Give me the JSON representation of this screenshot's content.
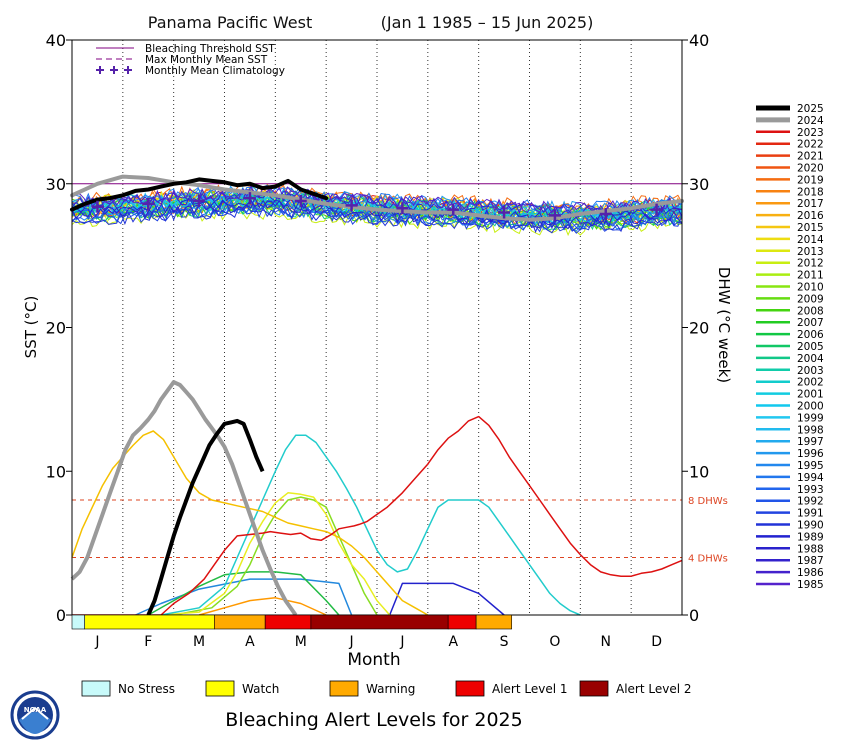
{
  "chart_data": {
    "type": "line",
    "title": "Panama Pacific West",
    "subtitle": "(Jan 1 1985 – 15 Jun 2025)",
    "xlabel": "Month",
    "ylabel_left": "SST (°C)",
    "ylabel_right": "DHW (°C week)",
    "ylim": [
      0,
      40
    ],
    "yticks": [
      0,
      10,
      20,
      30,
      40
    ],
    "months": [
      "J",
      "F",
      "M",
      "A",
      "M",
      "J",
      "J",
      "A",
      "S",
      "O",
      "N",
      "D"
    ],
    "bleaching_threshold_sst": 30.0,
    "reference_lines": [
      {
        "label": "8 DHWs",
        "value": 8,
        "color": "#dd4422"
      },
      {
        "label": "4 DHWs",
        "value": 4,
        "color": "#dd4422"
      }
    ],
    "legend_top": [
      {
        "label": "Bleaching Threshold SST",
        "style": "solid",
        "color": "#800080"
      },
      {
        "label": "Max Monthly Mean SST",
        "style": "dashed",
        "color": "#800080"
      },
      {
        "label": "Monthly Mean Climatology",
        "style": "cross",
        "color": "#5522aa"
      }
    ],
    "climatology": [
      28.4,
      28.6,
      28.8,
      29.0,
      28.8,
      28.5,
      28.3,
      28.2,
      28.0,
      27.8,
      27.9,
      28.2
    ],
    "sst_2025": {
      "x": [
        0.0,
        0.25,
        0.5,
        0.75,
        1.0,
        1.25,
        1.5,
        1.75,
        2.0,
        2.25,
        2.5,
        2.75,
        3.0,
        3.25,
        3.5,
        3.75,
        4.0,
        4.25,
        4.5,
        4.75,
        5.0
      ],
      "y": [
        28.2,
        28.6,
        28.9,
        29.0,
        29.2,
        29.5,
        29.6,
        29.8,
        30.0,
        30.1,
        30.3,
        30.2,
        30.1,
        29.9,
        30.0,
        29.7,
        29.8,
        30.2,
        29.6,
        29.3,
        29.0
      ]
    },
    "sst_2024": {
      "x": [
        0.0,
        0.5,
        1.0,
        1.5,
        2.0,
        2.5,
        3.0,
        3.5,
        4.0,
        4.5,
        5.0,
        5.5,
        6.0,
        6.5,
        7.0,
        7.5,
        8.0,
        8.5,
        9.0,
        9.5,
        10.0,
        10.5,
        11.0,
        11.5,
        12.0
      ],
      "y": [
        29.2,
        30.0,
        30.5,
        30.4,
        30.1,
        29.9,
        29.6,
        29.4,
        29.2,
        28.9,
        28.6,
        28.4,
        28.2,
        28.1,
        28.0,
        28.0,
        27.8,
        27.6,
        27.5,
        27.6,
        27.9,
        28.1,
        28.3,
        28.6,
        28.8
      ]
    },
    "dhw_series": [
      {
        "name": "2025",
        "color": "#000000",
        "width": 4,
        "x": [
          3.0,
          3.25,
          3.5,
          3.75,
          4.0,
          4.25,
          4.5,
          4.75,
          5.0,
          5.2,
          5.4,
          5.7,
          6.0,
          6.25,
          6.5,
          6.75,
          7.0,
          7.25,
          7.5
        ],
        "y": [
          0.0,
          1.0,
          2.5,
          4.0,
          5.5,
          6.8,
          8.0,
          9.2,
          10.2,
          11.0,
          11.8,
          12.6,
          13.3,
          13.4,
          13.5,
          13.3,
          12.2,
          11.0,
          10.0
        ]
      },
      {
        "name": "2024",
        "color": "#9a9a9a",
        "width": 4,
        "x": [
          0.0,
          0.3,
          0.6,
          0.9,
          1.2,
          1.5,
          1.8,
          2.1,
          2.4,
          2.7,
          3.0,
          3.25,
          3.5,
          3.75,
          4.0,
          4.25,
          4.5,
          4.75,
          5.0,
          5.25,
          5.5,
          5.75,
          6.0,
          6.3,
          6.6,
          6.9,
          7.2,
          7.5,
          7.8,
          8.1,
          8.4,
          8.8
        ],
        "y": [
          2.5,
          3.0,
          4.0,
          5.5,
          7.0,
          8.5,
          10.0,
          11.5,
          12.5,
          13.0,
          13.6,
          14.2,
          15.0,
          15.6,
          16.2,
          16.0,
          15.5,
          15.0,
          14.3,
          13.6,
          13.0,
          12.4,
          11.7,
          10.5,
          9.0,
          7.5,
          6.0,
          4.5,
          3.2,
          2.0,
          1.0,
          0.0
        ]
      },
      {
        "name": "2023",
        "color": "#dd1111",
        "width": 1.5,
        "x": [
          0.0,
          3.5,
          4.0,
          4.6,
          5.2,
          5.6,
          6.0,
          6.5,
          7.0,
          7.5,
          7.8,
          8.2,
          8.6,
          9.0,
          9.4,
          9.8,
          10.2,
          10.5,
          10.8,
          11.1,
          11.3,
          11.6,
          12.0,
          12.4,
          13.0,
          13.5,
          14.0,
          14.4,
          14.8,
          15.2,
          15.6,
          16.0,
          16.4,
          16.8,
          17.2,
          17.6,
          18.0,
          18.4,
          18.8,
          19.2,
          19.6,
          20.0,
          20.4,
          20.8,
          21.2,
          21.6,
          22.0,
          22.4,
          22.8,
          23.2,
          23.6,
          24.0
        ],
        "y": [
          0.0,
          0.0,
          0.8,
          1.5,
          2.5,
          3.5,
          4.5,
          5.5,
          5.6,
          5.7,
          5.8,
          5.7,
          5.6,
          5.7,
          5.3,
          5.2,
          5.6,
          6.0,
          6.1,
          6.2,
          6.3,
          6.5,
          7.0,
          7.5,
          8.5,
          9.5,
          10.5,
          11.5,
          12.3,
          12.8,
          13.5,
          13.8,
          13.2,
          12.2,
          11.0,
          10.0,
          9.0,
          8.0,
          7.0,
          6.0,
          5.0,
          4.2,
          3.5,
          3.0,
          2.8,
          2.7,
          2.7,
          2.9,
          3.0,
          3.2,
          3.5,
          3.8
        ]
      },
      {
        "name": "2016",
        "color": "#f5c000",
        "width": 1.5,
        "x": [
          0.0,
          0.4,
          0.8,
          1.2,
          1.6,
          2.0,
          2.4,
          2.8,
          3.2,
          3.6,
          4.0,
          4.5,
          5.0,
          5.5,
          6.0,
          6.5,
          7.0,
          7.5,
          8.0,
          8.5,
          9.0,
          9.5,
          10.0,
          10.5,
          11.0,
          11.5,
          12.0,
          12.5,
          13.0,
          13.5,
          14.0
        ],
        "y": [
          4.0,
          6.0,
          7.5,
          9.0,
          10.2,
          11.0,
          11.8,
          12.5,
          12.8,
          12.2,
          11.0,
          9.5,
          8.5,
          8.0,
          7.8,
          7.6,
          7.4,
          7.2,
          6.8,
          6.4,
          6.2,
          6.0,
          5.8,
          5.4,
          4.8,
          4.0,
          3.0,
          2.0,
          1.0,
          0.5,
          0.0
        ]
      },
      {
        "name": "1997",
        "color": "#22cccc",
        "width": 1.5,
        "x": [
          3.5,
          5.0,
          6.0,
          6.5,
          7.0,
          7.5,
          8.0,
          8.4,
          8.8,
          9.2,
          9.6,
          10.0,
          10.4,
          10.8,
          11.2,
          11.6,
          12.0,
          12.4,
          12.8,
          13.2,
          13.6,
          14.0,
          14.4,
          14.8,
          15.2,
          15.6,
          16.0,
          16.4,
          16.8,
          17.2,
          17.6,
          18.0,
          18.4,
          18.8,
          19.2,
          19.6,
          20.0
        ],
        "y": [
          0.0,
          0.5,
          2.0,
          4.0,
          6.0,
          8.0,
          10.0,
          11.5,
          12.5,
          12.5,
          12.0,
          11.0,
          10.0,
          8.8,
          7.5,
          6.0,
          4.5,
          3.5,
          3.0,
          3.2,
          4.5,
          6.0,
          7.5,
          8.0,
          8.0,
          8.0,
          8.0,
          7.5,
          6.5,
          5.5,
          4.5,
          3.5,
          2.5,
          1.5,
          0.8,
          0.3,
          0.0
        ]
      },
      {
        "name": "2015",
        "color": "#e8ee22",
        "width": 1.5,
        "x": [
          3.5,
          5.0,
          6.0,
          6.5,
          7.0,
          7.5,
          8.0,
          8.5,
          9.0,
          9.5,
          10.0,
          10.5,
          11.0,
          11.5,
          12.0,
          12.5
        ],
        "y": [
          0.0,
          0.2,
          1.5,
          3.0,
          5.0,
          6.5,
          7.8,
          8.5,
          8.4,
          8.2,
          7.0,
          5.0,
          3.5,
          2.5,
          1.0,
          0.0
        ]
      },
      {
        "name": "2010",
        "color": "#88dd22",
        "width": 1.5,
        "x": [
          4.0,
          5.5,
          6.5,
          7.0,
          7.5,
          8.0,
          8.5,
          9.0,
          9.5,
          10.0,
          10.5,
          11.0,
          11.5,
          12.0
        ],
        "y": [
          0.0,
          0.5,
          2.0,
          3.5,
          5.5,
          7.0,
          8.0,
          8.2,
          8.0,
          7.5,
          5.5,
          3.5,
          1.5,
          0.0
        ]
      },
      {
        "name": "2005",
        "color": "#22bb44",
        "width": 1.5,
        "x": [
          3.0,
          4.0,
          5.0,
          6.0,
          7.0,
          8.0,
          9.0,
          10.0,
          10.5
        ],
        "y": [
          0.0,
          1.0,
          2.0,
          2.8,
          3.0,
          3.0,
          2.8,
          1.0,
          0.0
        ]
      },
      {
        "name": "1995",
        "color": "#2288dd",
        "width": 1.5,
        "x": [
          2.5,
          3.5,
          5.0,
          7.0,
          9.0,
          10.5,
          11.0
        ],
        "y": [
          0.0,
          0.8,
          1.8,
          2.5,
          2.5,
          2.2,
          0.0
        ]
      },
      {
        "name": "1987",
        "color": "#2222cc",
        "width": 1.5,
        "x": [
          12.5,
          13.0,
          15.0,
          16.0,
          17.0
        ],
        "y": [
          0.0,
          2.2,
          2.2,
          1.5,
          0.0
        ]
      },
      {
        "name": "2017",
        "color": "#ff9900",
        "width": 1.5,
        "x": [
          5.0,
          6.0,
          7.0,
          8.0,
          9.0,
          10.0
        ],
        "y": [
          0.0,
          0.5,
          1.0,
          1.2,
          0.8,
          0.0
        ]
      }
    ],
    "legend_years": [
      "2025",
      "2024",
      "2023",
      "2022",
      "2021",
      "2020",
      "2019",
      "2018",
      "2017",
      "2016",
      "2015",
      "2014",
      "2013",
      "2012",
      "2011",
      "2010",
      "2009",
      "2008",
      "2007",
      "2006",
      "2005",
      "2004",
      "2003",
      "2002",
      "2001",
      "2000",
      "1999",
      "1998",
      "1997",
      "1996",
      "1995",
      "1994",
      "1993",
      "1992",
      "1991",
      "1990",
      "1989",
      "1988",
      "1987",
      "1986",
      "1985"
    ],
    "legend_year_colors": [
      "#000000",
      "#9a9a9a",
      "#dd1111",
      "#e32811",
      "#ea3f11",
      "#f05511",
      "#f56c11",
      "#f88211",
      "#fa9911",
      "#f8b011",
      "#f5c711",
      "#eedd11",
      "#dde811",
      "#c8ee11",
      "#aaee11",
      "#88e611",
      "#66dd11",
      "#44d411",
      "#22cc22",
      "#11c844",
      "#11c866",
      "#11c888",
      "#11ccaa",
      "#11cccc",
      "#11cce0",
      "#11c8ee",
      "#22c8f0",
      "#22bbee",
      "#22aaee",
      "#2299ee",
      "#2288ee",
      "#2277ee",
      "#2266ee",
      "#2255e8",
      "#2244e0",
      "#2233d8",
      "#2222d0",
      "#2a22cc",
      "#3322cc",
      "#4422cc",
      "#5522cc"
    ],
    "alert_bar": [
      {
        "from": 0.0,
        "to": 0.5,
        "level": "no_stress"
      },
      {
        "from": 0.5,
        "to": 5.6,
        "level": "watch"
      },
      {
        "from": 5.6,
        "to": 7.6,
        "level": "warning"
      },
      {
        "from": 7.6,
        "to": 9.4,
        "level": "alert1"
      },
      {
        "from": 9.4,
        "to": 14.8,
        "level": "alert2"
      },
      {
        "from": 14.8,
        "to": 15.9,
        "level": "alert1"
      },
      {
        "from": 15.9,
        "to": 17.3,
        "level": "warning"
      }
    ],
    "alert_levels": [
      {
        "key": "no_stress",
        "label": "No Stress",
        "color": "#c8fafa"
      },
      {
        "key": "watch",
        "label": "Watch",
        "color": "#ffff00"
      },
      {
        "key": "warning",
        "label": "Warning",
        "color": "#ffaa00"
      },
      {
        "key": "alert1",
        "label": "Alert Level 1",
        "color": "#ee0000"
      },
      {
        "key": "alert2",
        "label": "Alert Level 2",
        "color": "#990000"
      }
    ],
    "bottom_title": "Bleaching Alert Levels for 2025"
  },
  "logo_text": "NOAA"
}
